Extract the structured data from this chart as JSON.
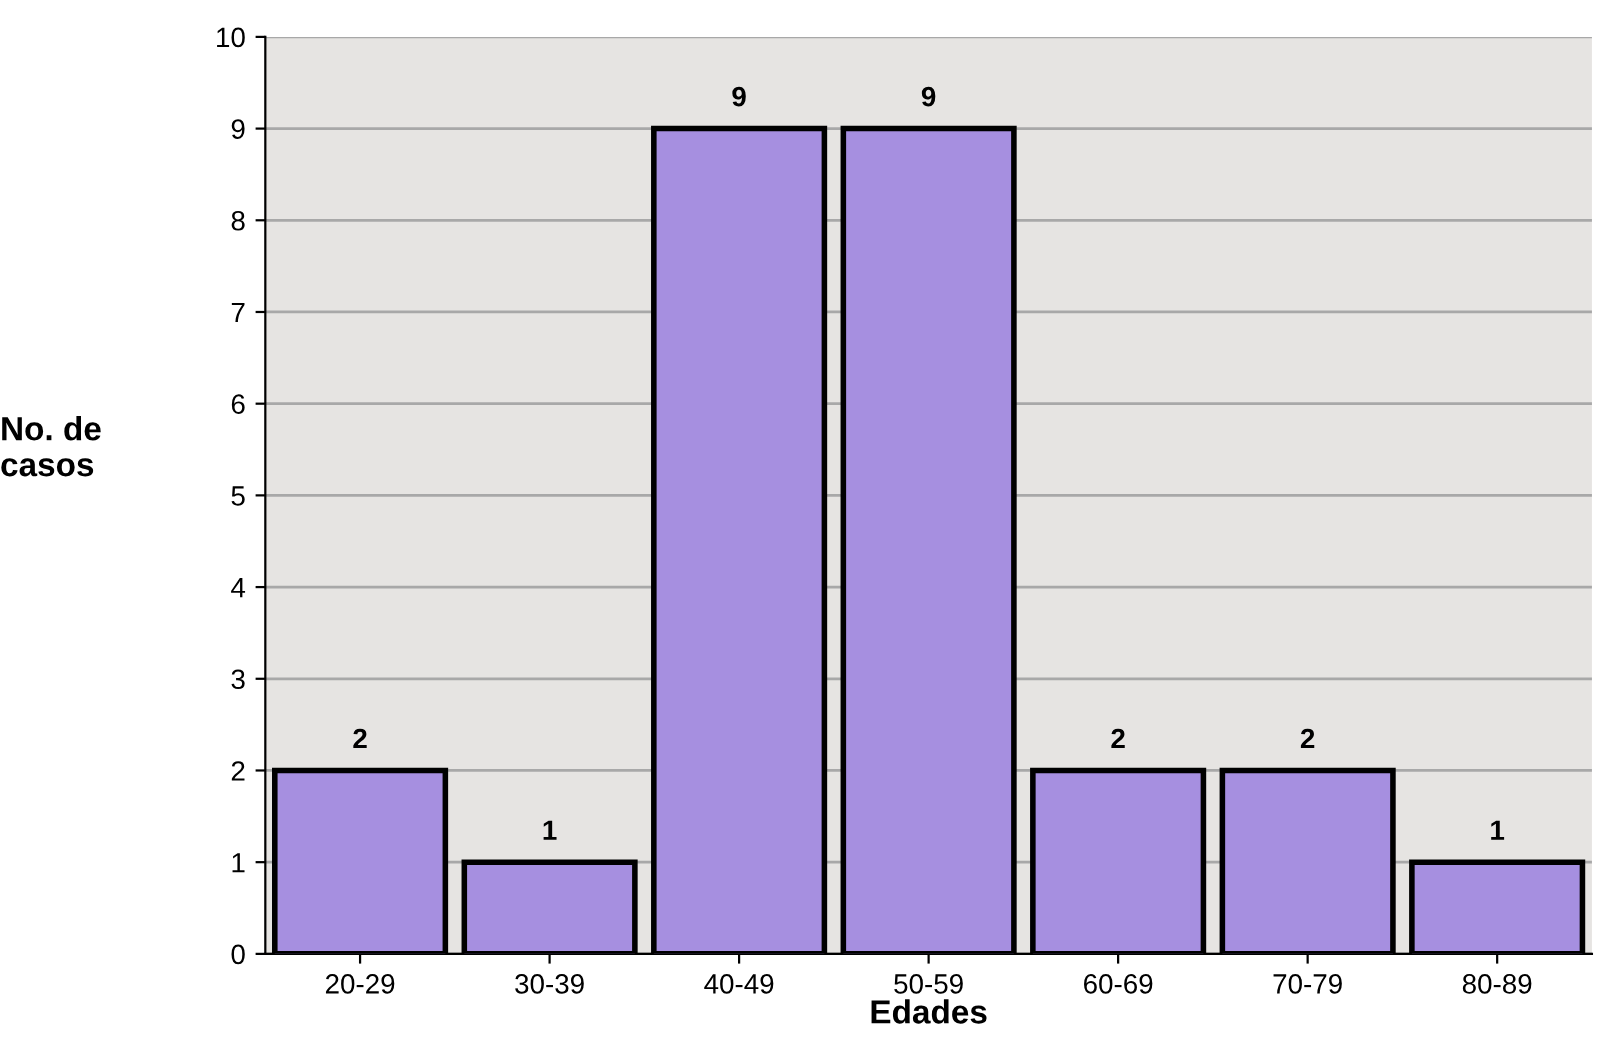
{
  "chart_data": {
    "type": "bar",
    "xlabel": "Edades",
    "ylabel": "No. de\ncasos",
    "categories": [
      "20-29",
      "30-39",
      "40-49",
      "50-59",
      "60-69",
      "70-79",
      "80-89"
    ],
    "values": [
      2,
      1,
      9,
      9,
      2,
      2,
      1
    ],
    "color": "#a68fe0",
    "ylim": [
      0,
      10
    ],
    "yticks": [
      0,
      1,
      2,
      3,
      4,
      5,
      6,
      7,
      8,
      9,
      10
    ],
    "grid": "y",
    "data_labels": true,
    "legend": false
  }
}
